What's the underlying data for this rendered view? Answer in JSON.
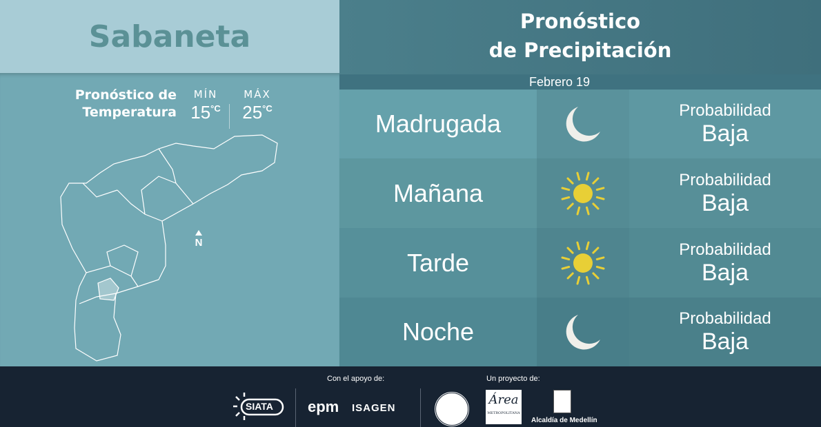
{
  "city": "Sabaneta",
  "temperature": {
    "title_line1": "Pronóstico de",
    "title_line2": "Temperatura",
    "min_label": "MÍN",
    "min_value": "15",
    "max_label": "MÁX",
    "max_value": "25",
    "unit": "°C"
  },
  "map": {
    "north_label": "N"
  },
  "precipitation": {
    "title_line1": "Pronóstico",
    "title_line2": "de Precipitación",
    "date": "Febrero 19",
    "rows": [
      {
        "period": "Madrugada",
        "icon": "moon-icon",
        "prob_label": "Probabilidad",
        "prob_value": "Baja"
      },
      {
        "period": "Mañana",
        "icon": "sun-icon",
        "prob_label": "Probabilidad",
        "prob_value": "Baja"
      },
      {
        "period": "Tarde",
        "icon": "sun-icon",
        "prob_label": "Probabilidad",
        "prob_value": "Baja"
      },
      {
        "period": "Noche",
        "icon": "moon-icon",
        "prob_label": "Probabilidad",
        "prob_value": "Baja"
      }
    ]
  },
  "footer": {
    "support_label": "Con el apoyo de:",
    "project_label": "Un proyecto de:",
    "logos": {
      "siata": "SIATA",
      "epm": "epm",
      "isagen": "ISAGEN",
      "area": "Área",
      "area_sub": "METROPOLITANA",
      "alcaldia": "Alcaldía de Medellín"
    }
  },
  "colors": {
    "sun": "#e8cf36",
    "moon": "#f0efea",
    "footer_bg": "#172332"
  }
}
